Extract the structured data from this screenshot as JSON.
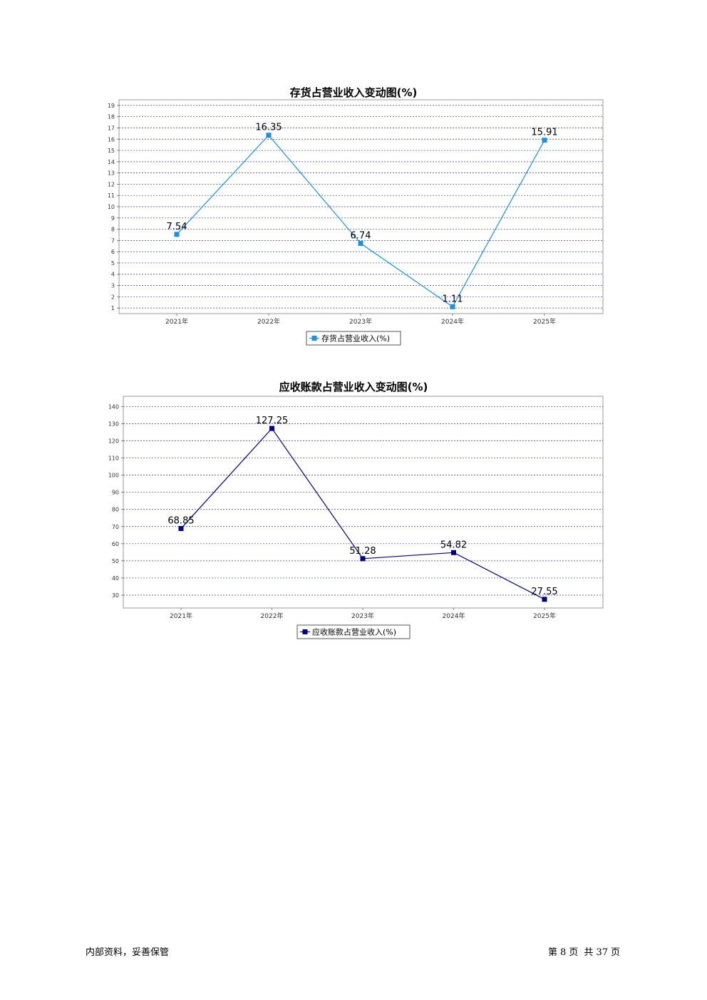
{
  "chart_data": [
    {
      "type": "line",
      "title": "存货占营业收入变动图(%)",
      "categories": [
        "2021年",
        "2022年",
        "2023年",
        "2024年",
        "2025年"
      ],
      "series": [
        {
          "name": "存货占营业收入(%)",
          "values": [
            7.54,
            16.35,
            6.74,
            1.11,
            15.91
          ],
          "color": "#1e90e0"
        }
      ],
      "data_labels": [
        "7.54",
        "16.35",
        "6.74",
        "1.11",
        "15.91"
      ],
      "y_ticks": [
        1,
        2,
        3,
        4,
        5,
        6,
        7,
        8,
        9,
        10,
        11,
        12,
        13,
        14,
        15,
        16,
        17,
        18,
        19
      ],
      "ylim": [
        0.5,
        19.5
      ],
      "grid": true,
      "grid_color": "#3333cc",
      "legend": "bottom-center"
    },
    {
      "type": "line",
      "title": "应收账款占营业收入变动图(%)",
      "categories": [
        "2021年",
        "2022年",
        "2023年",
        "2024年",
        "2025年"
      ],
      "series": [
        {
          "name": "应收账款占营业收入(%)",
          "values": [
            68.85,
            127.25,
            51.28,
            54.82,
            27.55
          ],
          "color": "#000080"
        }
      ],
      "data_labels": [
        "68.85",
        "127.25",
        "51.28",
        "54.82",
        "27.55"
      ],
      "y_ticks": [
        30,
        40,
        50,
        60,
        70,
        80,
        90,
        100,
        110,
        120,
        130,
        140
      ],
      "ylim": [
        22.5,
        146
      ],
      "grid": true,
      "grid_color": "#3333cc",
      "legend": "bottom-center"
    }
  ],
  "footer": {
    "left": "内部资料，妥善保管",
    "page_prefix": "第",
    "page_num": "8",
    "page_unit": "页",
    "total_prefix": "共",
    "total_num": "37",
    "total_unit": "页"
  }
}
